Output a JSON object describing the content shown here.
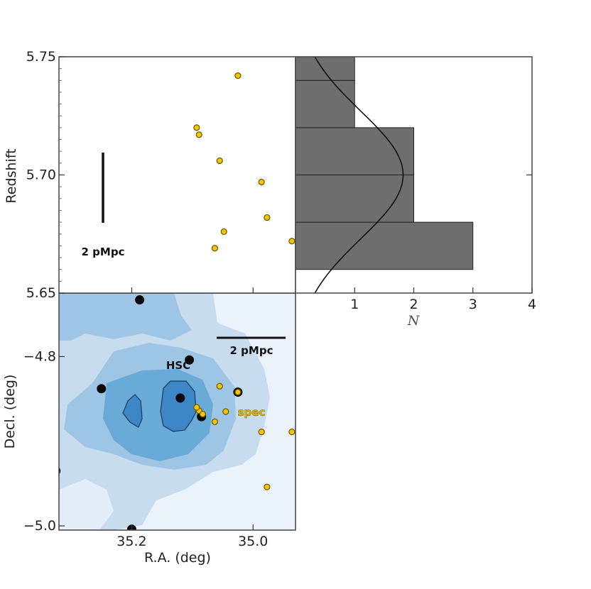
{
  "chart_data": [
    {
      "type": "scatter",
      "panel": "redshift-vs-ra",
      "xlabel": "",
      "ylabel": "Redshift",
      "ylim": [
        5.65,
        5.75
      ],
      "xlim": [
        35.32,
        34.93
      ],
      "yticks": [
        "5.75",
        "5.70",
        "5.65"
      ],
      "ytick_values": [
        5.75,
        5.7,
        5.65
      ],
      "points": [
        {
          "x": 35.025,
          "y": 5.742
        },
        {
          "x": 35.093,
          "y": 5.72
        },
        {
          "x": 35.089,
          "y": 5.717
        },
        {
          "x": 35.055,
          "y": 5.706
        },
        {
          "x": 34.986,
          "y": 5.697
        },
        {
          "x": 34.977,
          "y": 5.682
        },
        {
          "x": 35.048,
          "y": 5.676
        },
        {
          "x": 35.063,
          "y": 5.669
        },
        {
          "x": 34.936,
          "y": 5.672
        }
      ],
      "scalebar_label": "2 pMpc",
      "point_color": "#f4c400"
    },
    {
      "type": "bar",
      "panel": "redshift-histogram",
      "orientation": "horizontal",
      "xlabel": "N",
      "xlim": [
        0,
        4
      ],
      "xticks": [
        "1",
        "2",
        "3",
        "4"
      ],
      "xtick_values": [
        1,
        2,
        3,
        4
      ],
      "ylim": [
        5.65,
        5.75
      ],
      "bins": [
        {
          "z_low": 5.66,
          "z_high": 5.68,
          "count": 3
        },
        {
          "z_low": 5.68,
          "z_high": 5.7,
          "count": 2
        },
        {
          "z_low": 5.7,
          "z_high": 5.72,
          "count": 2
        },
        {
          "z_low": 5.72,
          "z_high": 5.74,
          "count": 1
        },
        {
          "z_low": 5.74,
          "z_high": 5.76,
          "count": 1
        }
      ],
      "gaussian_fit": {
        "mean_z": 5.7,
        "sigma_z": 0.027,
        "peak_n": 1.82
      },
      "bar_color": "#6e6e6e"
    },
    {
      "type": "scatter",
      "panel": "sky-map",
      "xlabel": "R.A. (deg)",
      "ylabel": "Decl. (deg)",
      "xlim": [
        35.32,
        34.93
      ],
      "ylim": [
        -5.005,
        -4.725
      ],
      "xticks": [
        "35.2",
        "35.0"
      ],
      "xtick_values": [
        35.2,
        35.0
      ],
      "yticks": [
        "−4.8",
        "−5.0"
      ],
      "ytick_values": [
        -4.8,
        -5.0
      ],
      "hsc_points": [
        {
          "ra": 35.187,
          "dec": -4.733
        },
        {
          "ra": 35.105,
          "dec": -4.804
        },
        {
          "ra": 35.25,
          "dec": -4.838
        },
        {
          "ra": 35.12,
          "dec": -4.849
        },
        {
          "ra": 35.085,
          "dec": -4.871
        },
        {
          "ra": 35.025,
          "dec": -4.842
        },
        {
          "ra": 35.325,
          "dec": -4.935
        },
        {
          "ra": 35.2,
          "dec": -5.004
        }
      ],
      "spec_points": [
        {
          "ra": 35.089,
          "dec": -4.864
        },
        {
          "ra": 35.083,
          "dec": -4.868
        },
        {
          "ra": 35.093,
          "dec": -4.86
        },
        {
          "ra": 35.063,
          "dec": -4.877
        },
        {
          "ra": 35.045,
          "dec": -4.865
        },
        {
          "ra": 35.055,
          "dec": -4.835
        },
        {
          "ra": 35.025,
          "dec": -4.842
        },
        {
          "ra": 34.986,
          "dec": -4.889
        },
        {
          "ra": 34.936,
          "dec": -4.889
        },
        {
          "ra": 34.977,
          "dec": -4.954
        }
      ],
      "annotations": {
        "hsc": "HSC",
        "spec": "spec",
        "scalebar": "2 pMpc"
      },
      "density_colors": [
        "#eaf2fb",
        "#c7dcef",
        "#9ec6e4",
        "#6aaad7",
        "#3d87c6"
      ]
    }
  ]
}
